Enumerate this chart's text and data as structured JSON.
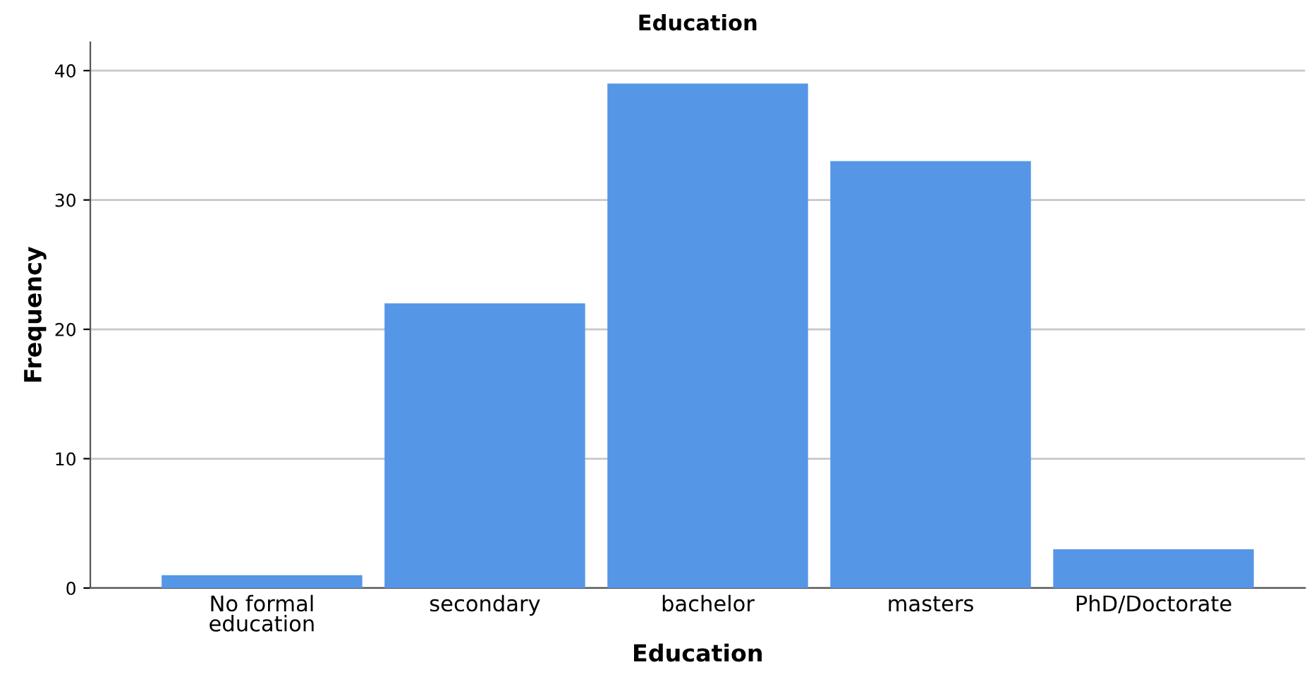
{
  "chart_data": {
    "type": "bar",
    "title": "Education",
    "xlabel": "Education",
    "ylabel": "Frequency",
    "categories": [
      "No formal\neducation",
      "secondary",
      "bachelor",
      "masters",
      "PhD/Doctorate"
    ],
    "values": [
      1,
      22,
      39,
      33,
      3
    ],
    "color": "#5596e6",
    "ylim": [
      0,
      42.2
    ],
    "yticks": [
      0,
      10,
      20,
      30,
      40
    ],
    "grid": "y"
  }
}
